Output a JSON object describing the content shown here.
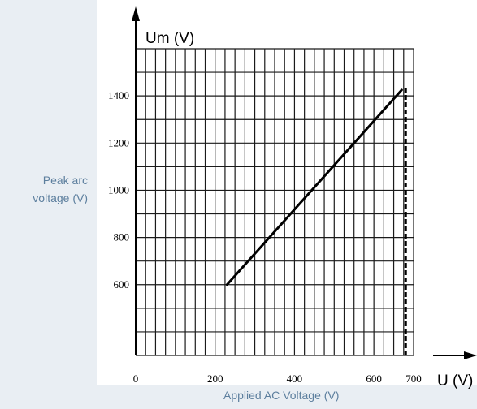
{
  "chart_data": {
    "type": "line",
    "title": "",
    "xlabel": "Applied AC Voltage (V)",
    "ylabel_lines": [
      "Peak arc",
      "voltage (V)"
    ],
    "x_axis_symbol": "U (V)",
    "y_axis_symbol": "Um (V)",
    "xlim": [
      0,
      700
    ],
    "ylim": [
      300,
      1600
    ],
    "x_ticks": [
      "0",
      "200",
      "400",
      "600",
      "700"
    ],
    "y_ticks": [
      "600",
      "800",
      "1000",
      "1200",
      "1400"
    ],
    "grid": true,
    "series": [
      {
        "style": "solid",
        "x": [
          230,
          670
        ],
        "y": [
          600,
          1425
        ]
      }
    ],
    "reference_lines": [
      {
        "orientation": "vertical",
        "style": "dashed",
        "x": 680
      }
    ]
  }
}
